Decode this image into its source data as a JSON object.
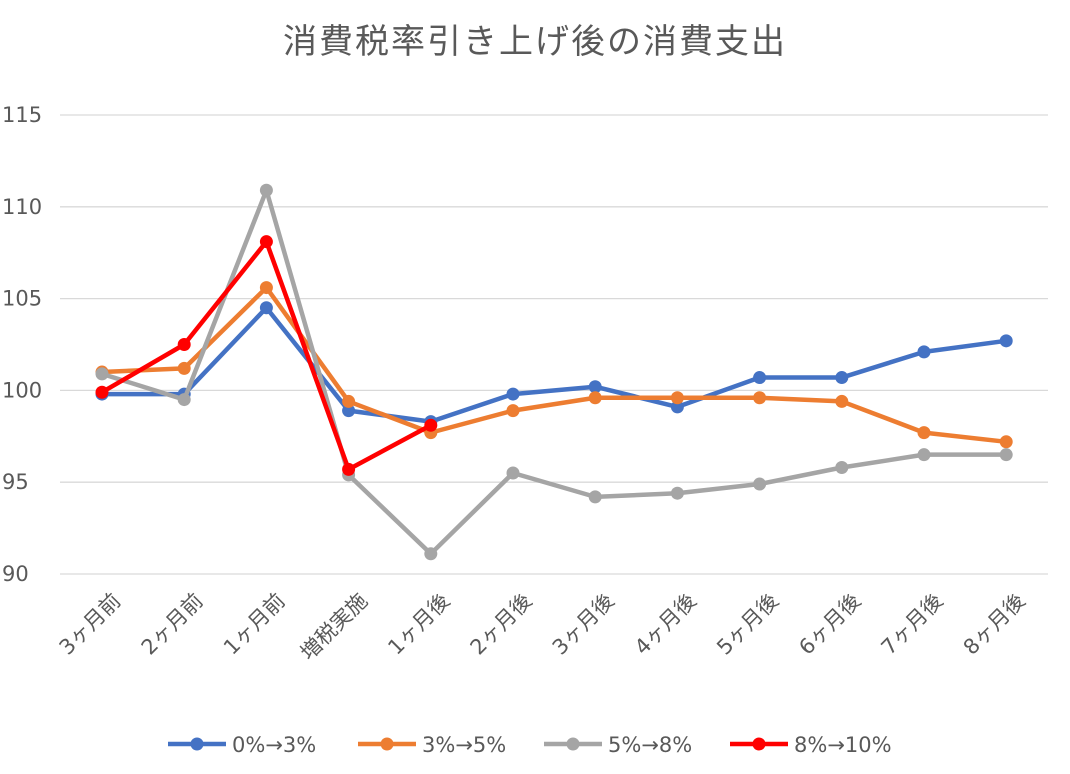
{
  "chart_data": {
    "type": "line",
    "title": "消費税率引き上げ後の消費支出",
    "xlabel": "",
    "ylabel": "",
    "ylim": [
      90,
      115
    ],
    "yticks": [
      90,
      95,
      100,
      105,
      110,
      115
    ],
    "grid": true,
    "legend_position": "bottom",
    "categories": [
      "3ヶ月前",
      "2ヶ月前",
      "1ヶ月前",
      "増税実施",
      "1ヶ月後",
      "2ヶ月後",
      "3ヶ月後",
      "4ヶ月後",
      "5ヶ月後",
      "6ヶ月後",
      "7ヶ月後",
      "8ヶ月後"
    ],
    "series": [
      {
        "name": "0%→3%",
        "color": "#4472C4",
        "values": [
          99.8,
          99.8,
          104.5,
          98.9,
          98.3,
          99.8,
          100.2,
          99.1,
          100.7,
          100.7,
          102.1,
          102.7
        ]
      },
      {
        "name": "3%→5%",
        "color": "#ED7D31",
        "values": [
          101.0,
          101.2,
          105.6,
          99.4,
          97.7,
          98.9,
          99.6,
          99.6,
          99.6,
          99.4,
          97.7,
          97.2
        ]
      },
      {
        "name": "5%→8%",
        "color": "#A5A5A5",
        "values": [
          100.9,
          99.5,
          110.9,
          95.4,
          91.1,
          95.5,
          94.2,
          94.4,
          94.9,
          95.8,
          96.5,
          96.5
        ]
      },
      {
        "name": "8%→10%",
        "color": "#FF0000",
        "values": [
          99.9,
          102.5,
          108.1,
          95.7,
          98.1,
          null,
          null,
          null,
          null,
          null,
          null,
          null
        ]
      }
    ]
  }
}
